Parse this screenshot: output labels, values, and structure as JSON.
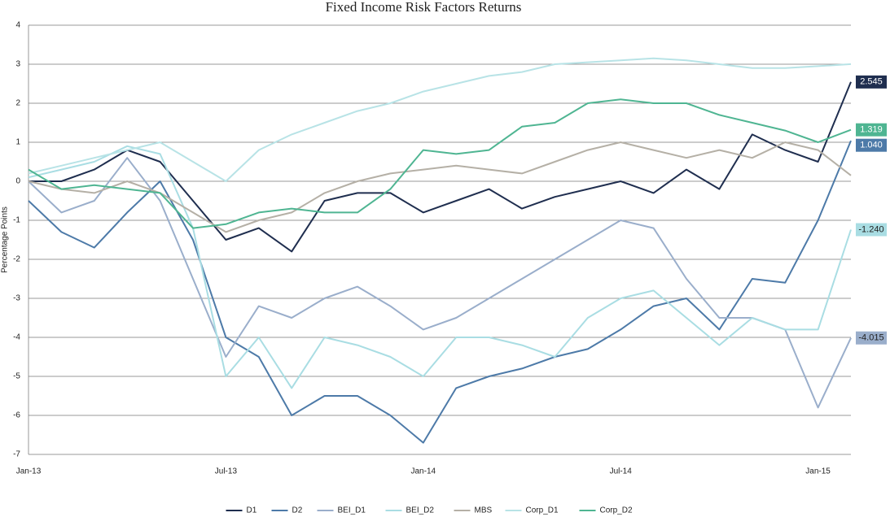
{
  "chart_data": {
    "type": "line",
    "title": "Fixed Income Risk Factors Returns",
    "y_label": "Percentage Points",
    "categories": [
      "Jan-13",
      null,
      null,
      null,
      null,
      null,
      "Jul-13",
      null,
      null,
      null,
      null,
      null,
      "Jan-14",
      null,
      null,
      null,
      null,
      null,
      "Jul-14",
      null,
      null,
      null,
      null,
      null,
      "Jan-15",
      null
    ],
    "ylim": [
      -7,
      4
    ],
    "yticks": [
      -7,
      -6,
      -5,
      -4,
      -3,
      -2,
      -1,
      0,
      1,
      2,
      3,
      4
    ],
    "grid": true,
    "series": [
      {
        "name": "D1",
        "color": "#1f2e4f",
        "values": [
          0,
          0,
          0.3,
          0.8,
          0.5,
          -0.5,
          -1.5,
          -1.2,
          -1.8,
          -0.5,
          -0.3,
          -0.3,
          -0.8,
          -0.5,
          -0.2,
          -0.7,
          -0.4,
          -0.2,
          0,
          -0.3,
          0.3,
          -0.2,
          1.2,
          0.8,
          0.5,
          2.545
        ],
        "value_labels": [
          null,
          null,
          null,
          null,
          null,
          null,
          null,
          null,
          null,
          null,
          null,
          null,
          null,
          null,
          null,
          null,
          null,
          null,
          null,
          null,
          null,
          null,
          null,
          null,
          null,
          "2.545"
        ]
      },
      {
        "name": "D2",
        "color": "#4d7aa8",
        "values": [
          -0.5,
          -1.3,
          -1.7,
          -0.8,
          0,
          -1.5,
          -4,
          -4.5,
          -6,
          -5.5,
          -5.5,
          -6,
          -6.7,
          -5.3,
          -5,
          -4.8,
          -4.5,
          -4.3,
          -3.8,
          -3.2,
          -3,
          -3.8,
          -2.5,
          -2.6,
          -1,
          1.04
        ],
        "value_labels": [
          null,
          null,
          null,
          null,
          null,
          null,
          null,
          null,
          null,
          null,
          null,
          null,
          null,
          null,
          null,
          null,
          null,
          null,
          null,
          null,
          null,
          null,
          null,
          null,
          null,
          "1.040"
        ]
      },
      {
        "name": "BEI_D1",
        "color": "#9aaecb",
        "values": [
          0,
          -0.8,
          -0.5,
          0.6,
          -0.5,
          -2.5,
          -4.5,
          -3.2,
          -3.5,
          -3,
          -2.7,
          -3.2,
          -3.8,
          -3.5,
          -3,
          -2.5,
          -2,
          -1.5,
          -1,
          -1.2,
          -2.5,
          -3.5,
          -3.5,
          -3.8,
          -5.8,
          -4.015
        ],
        "value_labels": [
          null,
          null,
          null,
          null,
          null,
          null,
          null,
          null,
          null,
          null,
          null,
          null,
          null,
          null,
          null,
          null,
          null,
          null,
          null,
          null,
          null,
          null,
          null,
          null,
          null,
          "-4.015"
        ]
      },
      {
        "name": "BEI_D2",
        "color": "#a9dde3",
        "values": [
          0.1,
          0.3,
          0.5,
          0.9,
          0.7,
          -1.2,
          -5,
          -4,
          -5.3,
          -4,
          -4.2,
          -4.5,
          -5,
          -4,
          -4,
          -4.2,
          -4.5,
          -3.5,
          -3,
          -2.8,
          -3.5,
          -4.2,
          -3.5,
          -3.8,
          -3.8,
          -1.24
        ],
        "value_labels": [
          null,
          null,
          null,
          null,
          null,
          null,
          null,
          null,
          null,
          null,
          null,
          null,
          null,
          null,
          null,
          null,
          null,
          null,
          null,
          null,
          null,
          null,
          null,
          null,
          null,
          "-1.240"
        ]
      },
      {
        "name": "MBS",
        "color": "#b5b0a6",
        "values": [
          0,
          -0.2,
          -0.3,
          0,
          -0.3,
          -0.8,
          -1.3,
          -1,
          -0.8,
          -0.3,
          0,
          0.2,
          0.3,
          0.4,
          0.3,
          0.2,
          0.5,
          0.8,
          1.0,
          0.8,
          0.6,
          0.8,
          0.6,
          1.0,
          0.8,
          0.15
        ]
      },
      {
        "name": "Corp_D1",
        "color": "#b8e3e6",
        "values": [
          0.2,
          0.4,
          0.6,
          0.8,
          1.0,
          0.5,
          0,
          0.8,
          1.2,
          1.5,
          1.8,
          2.0,
          2.3,
          2.5,
          2.7,
          2.8,
          3.0,
          3.05,
          3.1,
          3.15,
          3.1,
          3.0,
          2.9,
          2.9,
          2.95,
          3.002
        ]
      },
      {
        "name": "Corp_D2",
        "color": "#4fb592",
        "values": [
          0.3,
          -0.2,
          -0.1,
          -0.2,
          -0.3,
          -1.2,
          -1.1,
          -0.8,
          -0.7,
          -0.8,
          -0.8,
          -0.2,
          0.8,
          0.7,
          0.8,
          1.4,
          1.5,
          2.0,
          2.1,
          2.0,
          2.0,
          1.7,
          1.5,
          1.3,
          1.0,
          1.319
        ],
        "value_labels": [
          null,
          null,
          null,
          null,
          null,
          null,
          null,
          null,
          null,
          null,
          null,
          null,
          null,
          null,
          null,
          null,
          null,
          null,
          null,
          null,
          null,
          null,
          null,
          null,
          null,
          "1.319"
        ]
      }
    ]
  }
}
